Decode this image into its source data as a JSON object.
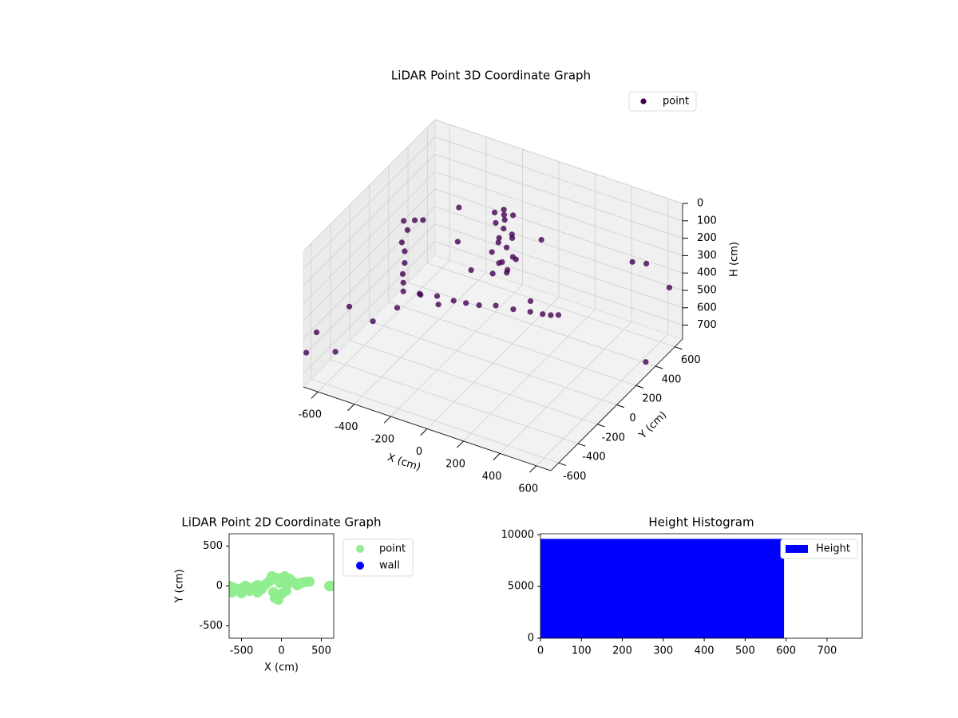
{
  "chart_data": [
    {
      "type": "scatter3d",
      "title": "LiDAR Point 3D Coordinate Graph",
      "xlabel": "X (cm)",
      "ylabel": "Y (cm)",
      "zlabel": "H (cm)",
      "xlim": [
        -680,
        680
      ],
      "ylim": [
        -680,
        680
      ],
      "zlim": [
        0,
        780
      ],
      "z_inverted": true,
      "xticks": [
        -600,
        -400,
        -200,
        0,
        200,
        400,
        600
      ],
      "yticks": [
        -600,
        -400,
        -200,
        0,
        200,
        400,
        600
      ],
      "zticks": [
        0,
        100,
        200,
        300,
        400,
        500,
        600,
        700
      ],
      "legend": "upper right",
      "series": [
        {
          "name": "point",
          "color": "#440154",
          "x": [
            -100,
            -140,
            -60,
            -120,
            -80,
            -150,
            -50,
            -110,
            -70,
            -130,
            -90,
            -40,
            -160,
            -100,
            -60,
            -120,
            -80,
            -140,
            -100,
            -90,
            -650,
            -640,
            -655,
            -650,
            -645,
            -650,
            -655,
            -600,
            -560,
            -605,
            -520,
            -440,
            -360,
            -300,
            -237,
            -160,
            -80,
            0,
            60,
            98,
            -680,
            -650,
            -600,
            -550,
            -500,
            -420,
            -350,
            -300,
            500,
            550,
            650,
            680,
            -300,
            -200,
            100,
            200,
            -400,
            0
          ],
          "y": [
            300,
            280,
            320,
            340,
            260,
            310,
            290,
            270,
            330,
            300,
            310,
            280,
            290,
            250,
            350,
            320,
            300,
            260,
            330,
            290,
            300,
            320,
            290,
            310,
            300,
            290,
            305,
            320,
            330,
            211,
            230,
            250,
            270,
            285,
            302,
            330,
            360,
            385,
            400,
            413,
            -650,
            -600,
            -500,
            -450,
            -300,
            -200,
            -100,
            0,
            500,
            550,
            600,
            300,
            200,
            150,
            200,
            300,
            400,
            500
          ],
          "z": [
            100,
            120,
            130,
            160,
            180,
            200,
            220,
            250,
            270,
            300,
            320,
            340,
            360,
            380,
            400,
            420,
            440,
            460,
            480,
            150,
            360,
            420,
            480,
            540,
            600,
            660,
            720,
            350,
            340,
            700,
            700,
            690,
            700,
            700,
            700,
            690,
            700,
            700,
            700,
            700,
            600,
            500,
            650,
            400,
            550,
            500,
            450,
            550,
            300,
            320,
            450,
            700,
            300,
            400,
            500,
            600,
            250,
            350
          ]
        }
      ]
    },
    {
      "type": "scatter",
      "title": "LiDAR Point 2D Coordinate Graph",
      "xlabel": "X (cm)",
      "ylabel": "Y (cm)",
      "xlim": [
        -655,
        655
      ],
      "ylim": [
        -655,
        655
      ],
      "xticks": [
        -500,
        0,
        500
      ],
      "yticks": [
        -500,
        0,
        500
      ],
      "legend": "outside right",
      "series": [
        {
          "name": "point",
          "color": "#90ee90",
          "x": [
            -650,
            -600,
            -550,
            -500,
            -450,
            -400,
            -350,
            -300,
            -250,
            -200,
            -150,
            -120,
            -100,
            -80,
            -60,
            -40,
            -20,
            0,
            20,
            40,
            60,
            80,
            100,
            150,
            200,
            250,
            300,
            350,
            600,
            630,
            -620,
            -500,
            -300
          ],
          "y": [
            0,
            -20,
            -50,
            -30,
            0,
            -60,
            -20,
            10,
            -40,
            20,
            60,
            120,
            -80,
            -150,
            100,
            -170,
            40,
            -100,
            80,
            120,
            -60,
            30,
            90,
            50,
            10,
            40,
            50,
            55,
            0,
            0,
            -80,
            -90,
            -80
          ]
        },
        {
          "name": "wall",
          "color": "#0000ff",
          "x": [],
          "y": []
        }
      ]
    },
    {
      "type": "histogram",
      "title": "Height Histogram",
      "bins": [
        0,
        595
      ],
      "xlim": [
        0,
        786
      ],
      "ylim": [
        0,
        10100
      ],
      "xticks": [
        0,
        100,
        200,
        300,
        400,
        500,
        600,
        700
      ],
      "yticks": [
        0,
        5000,
        10000
      ],
      "legend": "upper right",
      "series": [
        {
          "name": "Height",
          "color": "#0000ff",
          "values": [
            9600
          ]
        }
      ]
    }
  ]
}
